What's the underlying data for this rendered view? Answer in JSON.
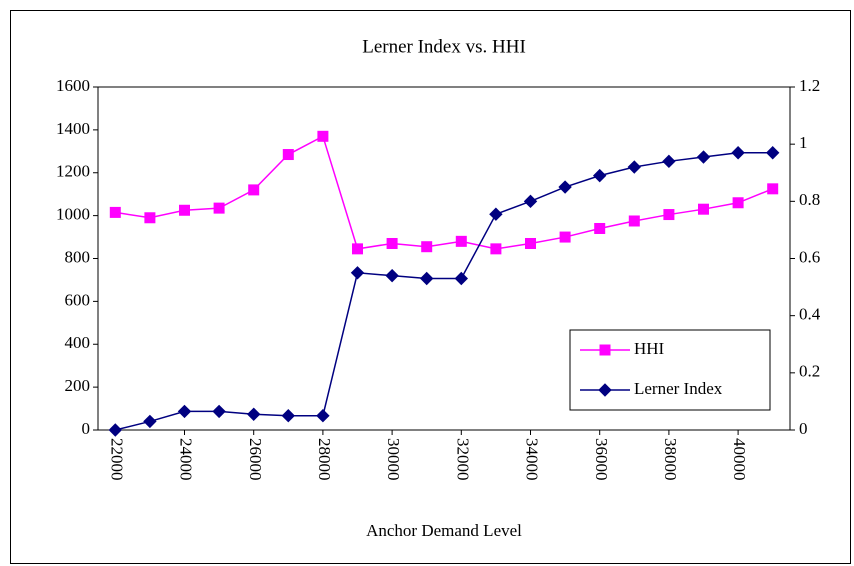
{
  "chart_data": {
    "type": "line",
    "title": "Lerner Index vs. HHI",
    "x_label": "Anchor Demand Level",
    "x": [
      22000,
      23000,
      24000,
      25000,
      26000,
      27000,
      28000,
      29000,
      30000,
      31000,
      32000,
      33000,
      34000,
      35000,
      36000,
      37000,
      38000,
      39000,
      40000,
      41000
    ],
    "xlim": [
      21500,
      41500
    ],
    "xticks": [
      22000,
      24000,
      26000,
      28000,
      30000,
      32000,
      34000,
      36000,
      38000,
      40000
    ],
    "ylim": [
      0,
      1600
    ],
    "yticks": [
      0,
      200,
      400,
      600,
      800,
      1000,
      1200,
      1400,
      1600
    ],
    "y2lim": [
      0,
      1.2
    ],
    "y2ticks": [
      0,
      0.2,
      0.4,
      0.6,
      0.8,
      1,
      1.2
    ],
    "legend": "lower right",
    "series": [
      {
        "name": "HHI",
        "color": "#ff00ff",
        "marker": "square",
        "values": [
          1015,
          990,
          1025,
          1035,
          1120,
          1285,
          1370,
          845,
          870,
          855,
          880,
          845,
          870,
          900,
          940,
          975,
          1005,
          1030,
          1060,
          1125
        ]
      },
      {
        "name": "Lerner Index",
        "color": "#000080",
        "marker": "diamond",
        "axis": "y2",
        "values": [
          0,
          0.03,
          0.065,
          0.065,
          0.055,
          0.05,
          0.05,
          0.55,
          0.54,
          0.53,
          0.53,
          0.755,
          0.8,
          0.85,
          0.89,
          0.92,
          0.94,
          0.955,
          0.97,
          0.97
        ]
      }
    ]
  }
}
